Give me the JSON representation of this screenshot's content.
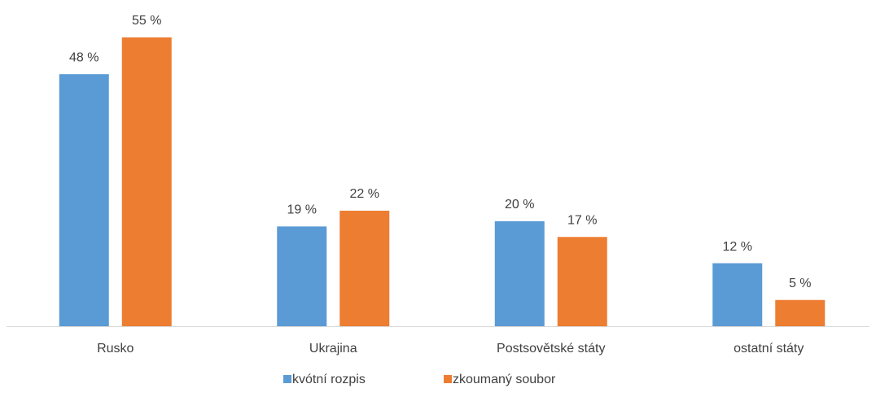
{
  "chart_data": {
    "type": "bar",
    "categories": [
      "Rusko",
      "Ukrajina",
      "Postsovětské státy",
      "ostatní státy"
    ],
    "series": [
      {
        "name": "kvótní rozpis",
        "color": "#5b9bd5",
        "values": [
          48,
          19,
          20,
          12
        ],
        "value_labels": [
          "48 %",
          "19 %",
          "20 %",
          "12 %"
        ]
      },
      {
        "name": "zkoumaný soubor",
        "color": "#ed7d31",
        "values": [
          55,
          22,
          17,
          5
        ],
        "value_labels": [
          "55 %",
          "22 %",
          "17 %",
          "5 %"
        ]
      }
    ],
    "legend": "bottom"
  }
}
